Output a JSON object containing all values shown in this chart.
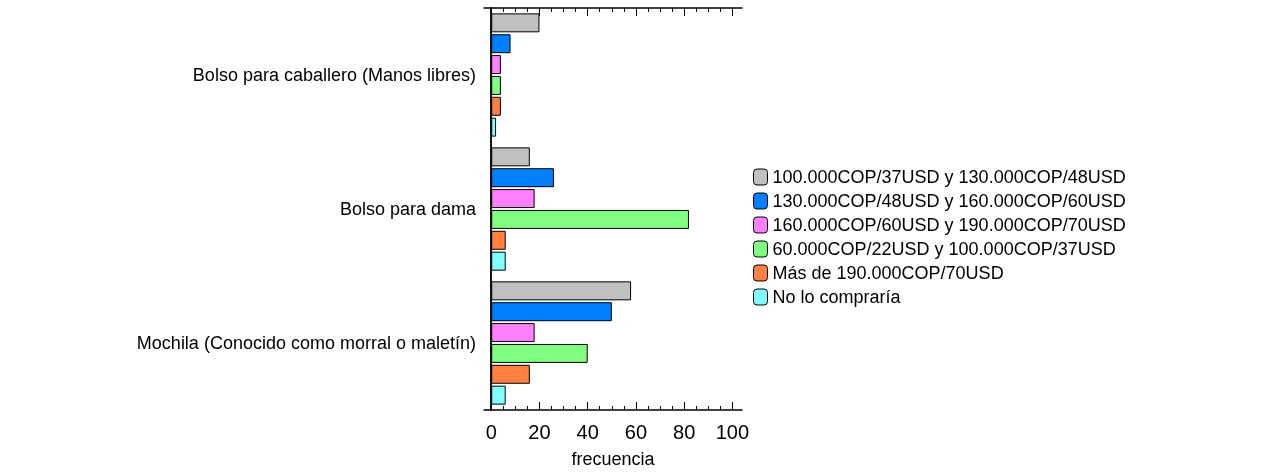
{
  "chart_data": {
    "type": "bar",
    "orientation": "horizontal",
    "xlabel": "frecuencia",
    "categories": [
      "Bolso para caballero (Manos libres)",
      "Bolso para dama",
      "Mochila (Conocido como morral o maletín)"
    ],
    "series": [
      {
        "name": "100.000COP/37USD y 130.000COP/48USD",
        "color": "#c0c0c0",
        "values": [
          20,
          16,
          58
        ]
      },
      {
        "name": "130.000COP/48USD y 160.000COP/60USD",
        "color": "#0080ff",
        "values": [
          8,
          26,
          50
        ]
      },
      {
        "name": "160.000COP/60USD y 190.000COP/70USD",
        "color": "#ff80ff",
        "values": [
          4,
          18,
          18
        ]
      },
      {
        "name": "60.000COP/22USD y 100.000COP/37USD",
        "color": "#80ff80",
        "values": [
          4,
          82,
          40
        ]
      },
      {
        "name": "Más de 190.000COP/70USD",
        "color": "#ff8040",
        "values": [
          4,
          6,
          16
        ]
      },
      {
        "name": "No lo compraría",
        "color": "#80ffff",
        "values": [
          2,
          6,
          6
        ]
      }
    ],
    "xlim": [
      -3,
      104
    ],
    "xticks": [
      0,
      20,
      40,
      60,
      80,
      100
    ],
    "grid": false,
    "legend": "right"
  }
}
